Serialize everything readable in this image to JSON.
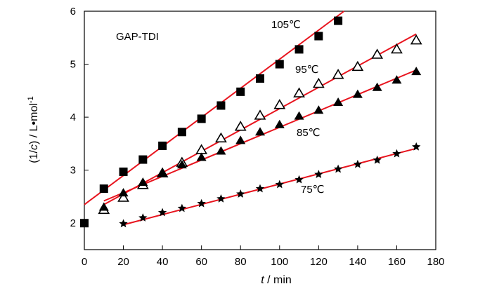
{
  "chart_data": {
    "type": "scatter",
    "title": "GAP-TDI",
    "xlabel": {
      "var": "t",
      "unit": " / min"
    },
    "ylabel": {
      "prefix": "(1/",
      "var": "c",
      "suffix": ") / L•mol",
      "sup": "-1"
    },
    "xlim": [
      0,
      180
    ],
    "ylim": [
      1.5,
      6
    ],
    "xticks": [
      0,
      20,
      40,
      60,
      80,
      100,
      120,
      140,
      160,
      180
    ],
    "yticks": [
      2,
      3,
      4,
      5,
      6
    ],
    "grid": false,
    "line_color": "#e8141e",
    "series": [
      {
        "name": "105℃",
        "marker": "filled-square",
        "x": [
          0,
          10,
          20,
          30,
          40,
          50,
          60,
          70,
          80,
          90,
          100,
          110,
          120,
          130
        ],
        "y": [
          2.0,
          2.65,
          2.97,
          3.2,
          3.46,
          3.72,
          3.97,
          4.22,
          4.48,
          4.73,
          5.0,
          5.28,
          5.53,
          5.82
        ],
        "fit": [
          [
            0,
            2.35
          ],
          [
            133,
            6.0
          ]
        ]
      },
      {
        "name": "95℃",
        "marker": "open-triangle",
        "x": [
          10,
          20,
          30,
          40,
          50,
          60,
          70,
          80,
          90,
          100,
          110,
          120,
          130,
          140,
          150,
          160,
          170
        ],
        "y": [
          2.25,
          2.48,
          2.72,
          2.94,
          3.14,
          3.38,
          3.6,
          3.82,
          4.03,
          4.23,
          4.45,
          4.63,
          4.8,
          4.95,
          5.18,
          5.28,
          5.45
        ],
        "fit": [
          [
            10,
            2.35
          ],
          [
            170,
            5.57
          ]
        ]
      },
      {
        "name": "85℃",
        "marker": "filled-triangle",
        "x": [
          10,
          20,
          30,
          40,
          50,
          60,
          70,
          80,
          90,
          100,
          110,
          120,
          130,
          140,
          150,
          160,
          170
        ],
        "y": [
          2.3,
          2.57,
          2.77,
          2.95,
          3.1,
          3.24,
          3.36,
          3.56,
          3.72,
          3.86,
          4.02,
          4.13,
          4.28,
          4.43,
          4.56,
          4.7,
          4.86
        ],
        "fit": [
          [
            10,
            2.42
          ],
          [
            170,
            4.89
          ]
        ]
      },
      {
        "name": "75℃",
        "marker": "star",
        "x": [
          20,
          30,
          40,
          50,
          60,
          70,
          80,
          90,
          100,
          110,
          120,
          130,
          140,
          150,
          160,
          170
        ],
        "y": [
          1.99,
          2.1,
          2.2,
          2.28,
          2.37,
          2.46,
          2.55,
          2.65,
          2.73,
          2.82,
          2.92,
          3.02,
          3.11,
          3.19,
          3.31,
          3.44
        ],
        "fit": [
          [
            20,
            1.97
          ],
          [
            170,
            3.41
          ]
        ]
      }
    ]
  }
}
